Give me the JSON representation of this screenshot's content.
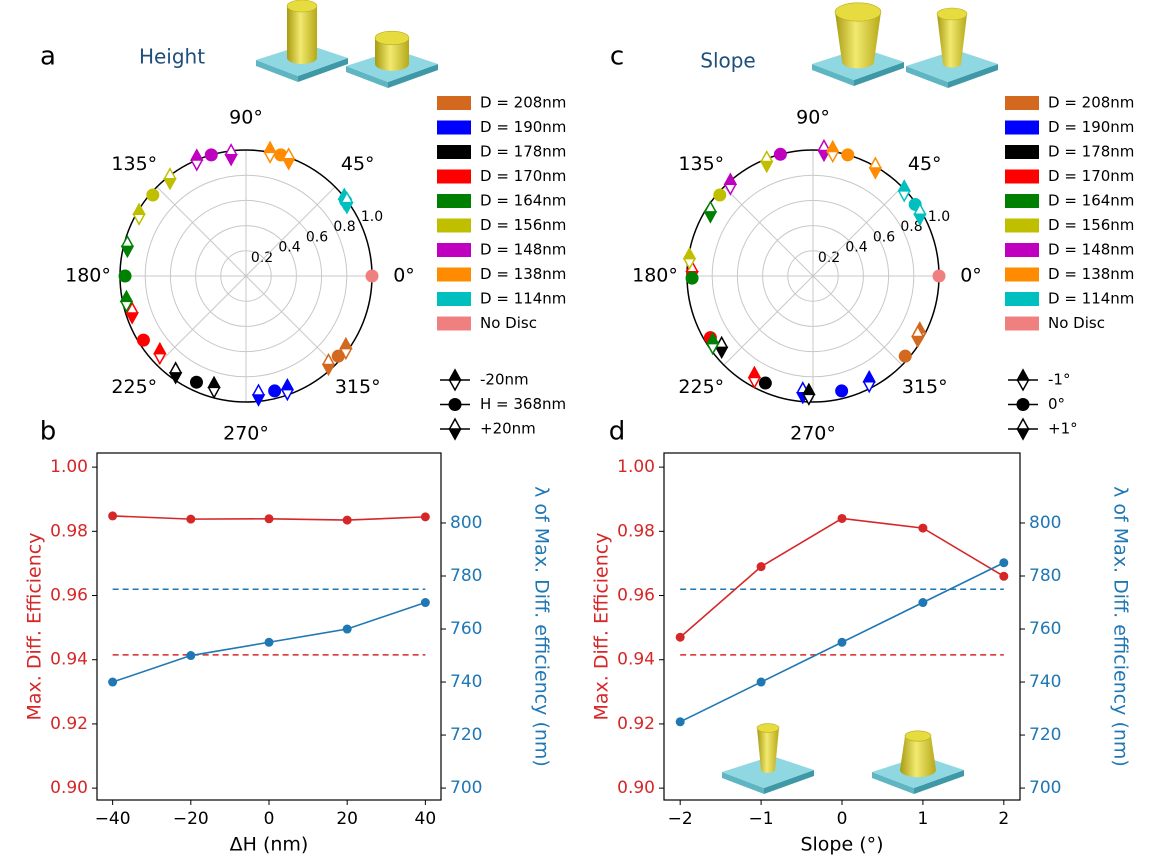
{
  "chart_data": [
    {
      "type": "polar",
      "label": "a",
      "title": "Height",
      "rlim": [
        0,
        1
      ],
      "rticks": [
        0.2,
        0.4,
        0.6,
        0.8,
        {
          "value": 1,
          "label": "1.0"
        }
      ],
      "thetaticks": [
        {
          "value": 0,
          "label": "0°"
        },
        {
          "value": 45,
          "label": "45°"
        },
        {
          "value": 90,
          "label": "90°"
        },
        {
          "value": 135,
          "label": "135°"
        },
        {
          "value": 180,
          "label": "180°"
        },
        {
          "value": 225,
          "label": "225°"
        },
        {
          "value": 270,
          "label": "270°"
        },
        {
          "value": 315,
          "label": "315°"
        }
      ],
      "series": [
        {
          "name": "D = 208nm",
          "color": "#d2691e",
          "theta": [
            324,
            319,
            313
          ],
          "r": [
            0.98,
            0.97,
            0.96
          ]
        },
        {
          "name": "D = 190nm",
          "color": "#0000ff",
          "theta": [
            290,
            284,
            276
          ],
          "r": [
            0.96,
            0.94,
            0.95
          ]
        },
        {
          "name": "D = 178nm",
          "color": "#000000",
          "theta": [
            254,
            245,
            234
          ],
          "r": [
            0.92,
            0.93,
            0.95
          ]
        },
        {
          "name": "D = 170nm",
          "color": "#ff0000",
          "theta": [
            222,
            212,
            198
          ],
          "r": [
            0.92,
            0.96,
            0.95
          ]
        },
        {
          "name": "D = 164nm",
          "color": "#008000",
          "theta": [
            192,
            180,
            166
          ],
          "r": [
            0.97,
            0.96,
            0.97
          ]
        },
        {
          "name": "D = 156nm",
          "color": "#bfbf00",
          "theta": [
            150,
            139,
            128
          ],
          "r": [
            0.98,
            0.98,
            0.98
          ]
        },
        {
          "name": "D = 148nm",
          "color": "#bf00bf",
          "theta": [
            113,
            106,
            97
          ],
          "r": [
            1.0,
            1.0,
            0.97
          ]
        },
        {
          "name": "D = 138nm",
          "color": "#ff8c00",
          "theta": [
            79,
            74,
            70
          ],
          "r": [
            1.0,
            1.0,
            0.99
          ]
        },
        {
          "name": "D = 114nm",
          "color": "#00bfbf",
          "theta": [
            38,
            37,
            36
          ],
          "r": [
            0.99,
            0.99,
            0.99
          ]
        },
        {
          "name": "No Disc",
          "color": "#f08080",
          "theta": [
            0
          ],
          "r": [
            1.0
          ]
        }
      ],
      "marker_legend": [
        "-20nm",
        "H = 368nm",
        "+20nm"
      ]
    },
    {
      "type": "line",
      "label": "b",
      "x": [
        -40,
        -20,
        0,
        20,
        40
      ],
      "xlim": [
        -44,
        44
      ],
      "xticks": [
        {
          "value": -40,
          "label": "−40"
        },
        {
          "value": -20,
          "label": "−20"
        },
        0,
        20,
        40
      ],
      "xlabel": "ΔH  (nm)",
      "ylabel": "Max. Diff. Efficiency",
      "y2label": "λ of Max. Diff. efficiency (nm)",
      "ylim": [
        0.8963,
        1.0044
      ],
      "yticks": [
        {
          "value": 0.9,
          "label": "0.90"
        },
        0.92,
        0.94,
        0.96,
        0.98,
        {
          "value": 1,
          "label": "1.00"
        }
      ],
      "y2lim": [
        695.5,
        826.4
      ],
      "y2ticks": [
        700,
        720,
        740,
        760,
        780,
        800
      ],
      "series": [
        {
          "color": "#d62728",
          "values": [
            0.9848,
            0.9838,
            0.9839,
            0.9835,
            0.9845
          ]
        },
        {
          "color": "#1f77b4",
          "axis": "y2",
          "values": [
            740,
            750,
            755,
            760,
            770
          ]
        }
      ],
      "reference_lines": [
        {
          "value": 0.9415,
          "color": "#d62728"
        },
        {
          "value": 775,
          "axis": "y2",
          "color": "#1f77b4"
        }
      ]
    },
    {
      "type": "polar",
      "label": "c",
      "title": "Slope",
      "rlim": [
        0,
        1
      ],
      "rticks": [
        0.2,
        0.4,
        0.6,
        0.8,
        {
          "value": 1,
          "label": "1.0"
        }
      ],
      "thetaticks": [
        {
          "value": 0,
          "label": "0°"
        },
        {
          "value": 45,
          "label": "45°"
        },
        {
          "value": 90,
          "label": "90°"
        },
        {
          "value": 135,
          "label": "135°"
        },
        {
          "value": 180,
          "label": "180°"
        },
        {
          "value": 225,
          "label": "225°"
        },
        {
          "value": 270,
          "label": "270°"
        },
        {
          "value": 315,
          "label": "315°"
        }
      ],
      "series": [
        {
          "name": "D = 208nm",
          "color": "#d2691e",
          "theta": [
            332,
            319,
            330
          ],
          "r": [
            0.96,
            0.97,
            0.96
          ]
        },
        {
          "name": "D = 190nm",
          "color": "#0000ff",
          "theta": [
            298,
            284,
            265
          ],
          "r": [
            0.95,
            0.94,
            0.93
          ]
        },
        {
          "name": "D = 178nm",
          "color": "#000000",
          "theta": [
            268,
            246,
            218
          ],
          "r": [
            0.94,
            0.93,
            0.92
          ]
        },
        {
          "name": "D = 170nm",
          "color": "#ff0000",
          "theta": [
            240,
            211,
            178
          ],
          "r": [
            0.93,
            0.95,
            0.96
          ]
        },
        {
          "name": "D = 164nm",
          "color": "#008000",
          "theta": [
            214,
            181,
            148
          ],
          "r": [
            0.96,
            0.96,
            0.96
          ]
        },
        {
          "name": "D = 156nm",
          "color": "#bfbf00",
          "theta": [
            172,
            139,
            112
          ],
          "r": [
            0.99,
            0.98,
            0.98
          ]
        },
        {
          "name": "D = 148nm",
          "color": "#bf00bf",
          "theta": [
            132,
            105,
            85
          ],
          "r": [
            0.98,
            1.0,
            1.0
          ]
        },
        {
          "name": "D = 138nm",
          "color": "#ff8c00",
          "theta": [
            81,
            74,
            60
          ],
          "r": [
            1.0,
            1.0,
            0.99
          ]
        },
        {
          "name": "D = 114nm",
          "color": "#00bfbf",
          "theta": [
            43,
            35,
            30
          ],
          "r": [
            0.99,
            0.99,
            0.98
          ]
        },
        {
          "name": "No Disc",
          "color": "#f08080",
          "theta": [
            0
          ],
          "r": [
            1.0
          ]
        }
      ],
      "marker_legend": [
        "-1°",
        "0°",
        "+1°"
      ]
    },
    {
      "type": "line",
      "label": "d",
      "x": [
        -2,
        -1,
        0,
        1,
        2
      ],
      "xlim": [
        -2.2,
        2.2
      ],
      "xticks": [
        {
          "value": -2,
          "label": "−2"
        },
        {
          "value": -1,
          "label": "−1"
        },
        0,
        1,
        2
      ],
      "xlabel": "Slope (°)",
      "ylabel": "Max. Diff. Efficiency",
      "y2label": "λ of Max. Diff. efficiency (nm)",
      "ylim": [
        0.8963,
        1.0044
      ],
      "yticks": [
        {
          "value": 0.9,
          "label": "0.90"
        },
        0.92,
        0.94,
        0.96,
        0.98,
        {
          "value": 1,
          "label": "1.00"
        }
      ],
      "y2lim": [
        695.5,
        826.4
      ],
      "y2ticks": [
        700,
        720,
        740,
        760,
        780,
        800
      ],
      "series": [
        {
          "color": "#d62728",
          "values": [
            0.947,
            0.969,
            0.984,
            0.981,
            0.966
          ]
        },
        {
          "color": "#1f77b4",
          "axis": "y2",
          "values": [
            725,
            740,
            755,
            770,
            785
          ]
        }
      ],
      "reference_lines": [
        {
          "value": 0.9415,
          "color": "#d62728"
        },
        {
          "value": 775,
          "axis": "y2",
          "color": "#1f77b4"
        }
      ]
    }
  ]
}
